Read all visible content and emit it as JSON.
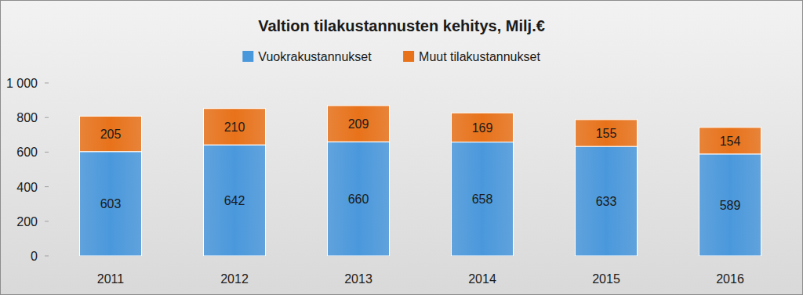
{
  "chart_data": {
    "type": "bar",
    "title": "Valtion tilakustannusten kehitys, Milj.€",
    "categories": [
      "2011",
      "2012",
      "2013",
      "2014",
      "2015",
      "2016"
    ],
    "series": [
      {
        "name": "Vuokrakustannukset",
        "color": "#4a98dc",
        "values": [
          603,
          642,
          660,
          658,
          633,
          589
        ]
      },
      {
        "name": "Muut tilakustannukset",
        "color": "#e8721a",
        "values": [
          205,
          210,
          209,
          169,
          155,
          154
        ]
      }
    ],
    "stacked": true,
    "data_labels": true,
    "legend": "top",
    "grid": false,
    "ylim": [
      0,
      1000
    ],
    "yticks": [
      0,
      200,
      400,
      600,
      800,
      {
        "value": 1000,
        "label": "1 000"
      }
    ]
  }
}
